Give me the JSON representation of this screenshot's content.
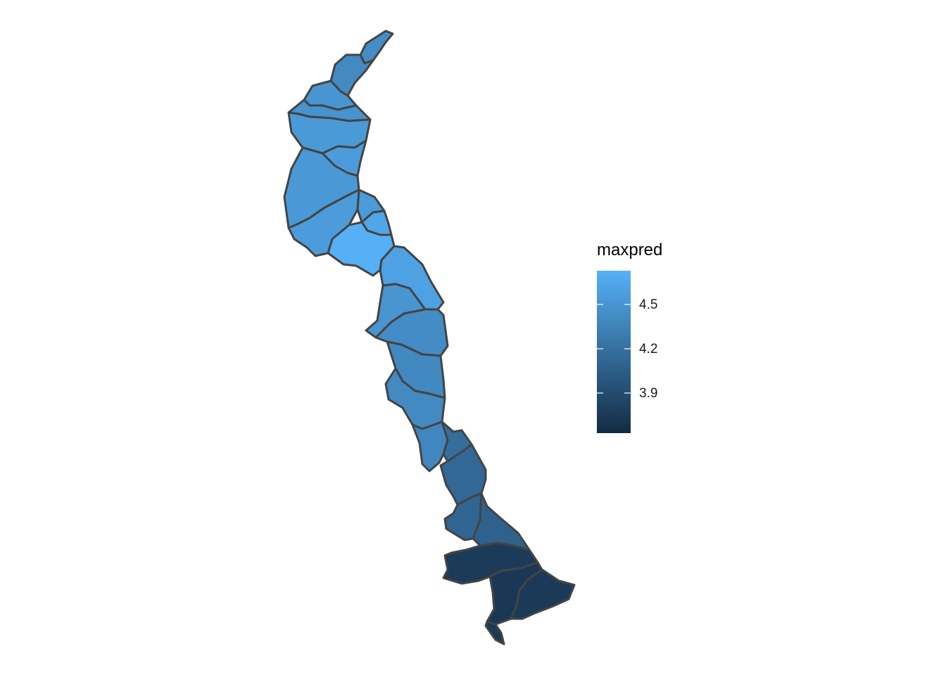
{
  "legend": {
    "title": "maxpred",
    "ticks": [
      "4.5",
      "4.2",
      "3.9"
    ],
    "color_low": "#132B43",
    "color_high": "#56B1F7"
  },
  "border_color": "#444444",
  "regions": [
    {
      "maxpred": 4.45
    },
    {
      "maxpred": 4.43
    },
    {
      "maxpred": 4.52
    },
    {
      "maxpred": 4.5
    },
    {
      "maxpred": 4.56
    },
    {
      "maxpred": 4.58
    },
    {
      "maxpred": 4.55
    },
    {
      "maxpred": 4.58
    },
    {
      "maxpred": 4.57
    },
    {
      "maxpred": 4.66
    },
    {
      "maxpred": 4.74
    },
    {
      "maxpred": 4.62
    },
    {
      "maxpred": 4.52
    },
    {
      "maxpred": 4.45
    },
    {
      "maxpred": 4.42
    },
    {
      "maxpred": 4.43
    },
    {
      "maxpred": 4.4
    },
    {
      "maxpred": 4.2
    },
    {
      "maxpred": 4.15
    },
    {
      "maxpred": 4.13
    },
    {
      "maxpred": 4.1
    },
    {
      "maxpred": 3.78
    },
    {
      "maxpred": 3.76
    },
    {
      "maxpred": 3.77
    }
  ]
}
